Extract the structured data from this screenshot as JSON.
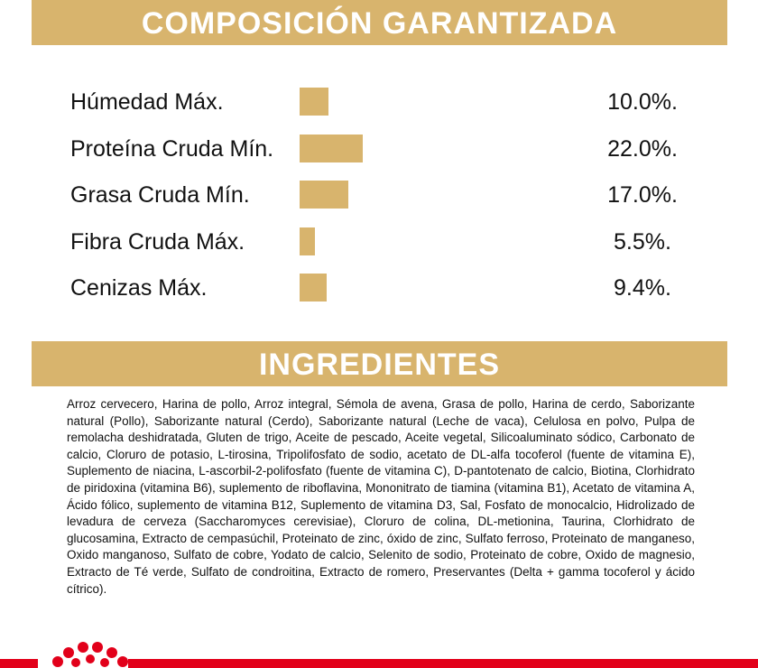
{
  "composition": {
    "title": "COMPOSICIÓN GARANTIZADA",
    "rows": [
      {
        "label": "Húmedad Máx.",
        "value": 10.0,
        "value_label": "10.0%."
      },
      {
        "label": "Proteína Cruda Mín.",
        "value": 22.0,
        "value_label": "22.0%."
      },
      {
        "label": "Grasa Cruda Mín.",
        "value": 17.0,
        "value_label": "17.0%."
      },
      {
        "label": "Fibra Cruda Máx.",
        "value": 5.5,
        "value_label": "5.5%."
      },
      {
        "label": "Cenizas Máx.",
        "value": 9.4,
        "value_label": "9.4%."
      }
    ]
  },
  "ingredients": {
    "title": "INGREDIENTES",
    "text": "Arroz cervecero, Harina de pollo, Arroz integral, Sémola de avena, Grasa de pollo, Harina de cerdo, Saborizante natural (Pollo), Saborizante natural (Cerdo), Saborizante natural (Leche de vaca), Celulosa en polvo, Pulpa de remolacha deshidratada, Gluten de trigo, Aceite de pescado, Aceite vegetal, Silicoaluminato sódico, Carbonato de calcio, Cloruro de potasio, L-tirosina, Tripolifosfato de sodio, acetato de DL-alfa tocoferol (fuente de vitamina E), Suplemento de niacina, L-ascorbil-2-polifosfato (fuente de vitamina C), D-pantotenato de calcio, Biotina, Clorhidrato de piridoxina (vitamina B6), suplemento de riboflavina, Mononitrato de tiamina (vitamina B1), Acetato de vitamina A, Ácido fólico, suplemento de vitamina B12, Suplemento de vitamina D3, Sal, Fosfato de monocalcio, Hidrolizado de levadura de cerveza (Saccharomyces cerevisiae), Cloruro de colina, DL-metionina, Taurina, Clorhidrato de glucosamina, Extracto de cempasúchil, Proteinato de zinc, óxido de zinc, Sulfato ferroso, Proteinato de manganeso, Oxido manganoso, Sulfato de cobre, Yodato de calcio, Selenito de sodio, Proteinato de cobre, Oxido de magnesio, Extracto de Té verde, Sulfato de condroitina, Extracto de romero, Preservantes (Delta + gamma tocoferol y ácido cítrico)."
  }
}
